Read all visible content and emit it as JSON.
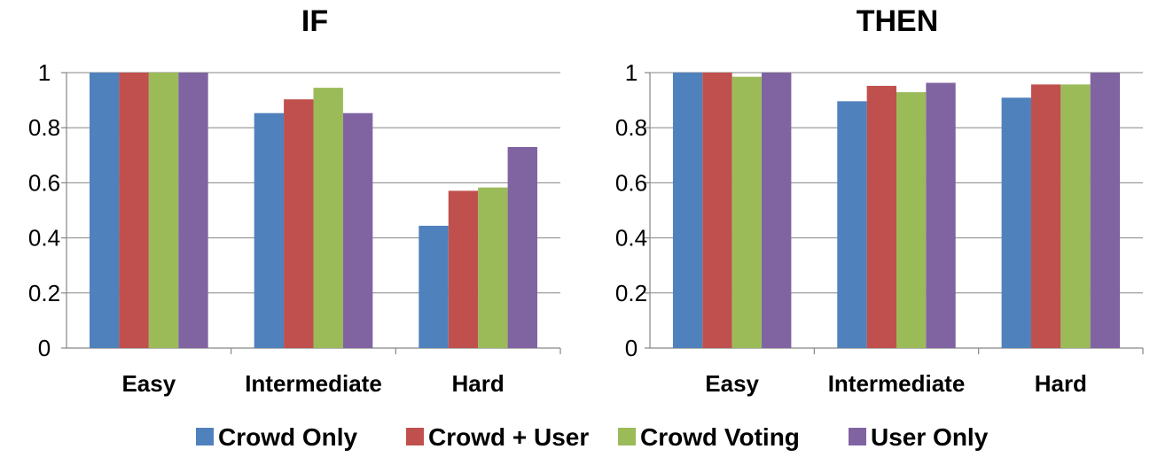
{
  "chart_data": [
    {
      "type": "bar",
      "title": "IF",
      "categories": [
        "Easy",
        "Intermediate",
        "Hard"
      ],
      "ylim": [
        0,
        1
      ],
      "yticks": [
        "0",
        "0.2",
        "0.4",
        "0.6",
        "0.8",
        "1"
      ],
      "grid": true,
      "series": [
        {
          "name": "Crowd Only",
          "values": [
            1.0,
            0.853,
            0.444
          ]
        },
        {
          "name": "Crowd + User",
          "values": [
            1.0,
            0.903,
            0.571
          ]
        },
        {
          "name": "Crowd Voting",
          "values": [
            1.0,
            0.945,
            0.583
          ]
        },
        {
          "name": "User Only",
          "values": [
            1.0,
            0.853,
            0.73
          ]
        }
      ]
    },
    {
      "type": "bar",
      "title": "THEN",
      "categories": [
        "Easy",
        "Intermediate",
        "Hard"
      ],
      "ylim": [
        0,
        1
      ],
      "yticks": [
        "0",
        "0.2",
        "0.4",
        "0.6",
        "0.8",
        "1"
      ],
      "grid": true,
      "series": [
        {
          "name": "Crowd Only",
          "values": [
            1.0,
            0.896,
            0.909
          ]
        },
        {
          "name": "Crowd + User",
          "values": [
            1.0,
            0.952,
            0.957
          ]
        },
        {
          "name": "Crowd Voting",
          "values": [
            0.985,
            0.929,
            0.957
          ]
        },
        {
          "name": "User Only",
          "values": [
            1.0,
            0.963,
            1.0
          ]
        }
      ]
    }
  ],
  "legend": {
    "placement": "bottom",
    "items": [
      {
        "label": "Crowd Only",
        "color": "#4f81bd"
      },
      {
        "label": "Crowd + User",
        "color": "#c0504d"
      },
      {
        "label": "Crowd Voting",
        "color": "#9bbb59"
      },
      {
        "label": "User Only",
        "color": "#8064a2"
      }
    ]
  }
}
